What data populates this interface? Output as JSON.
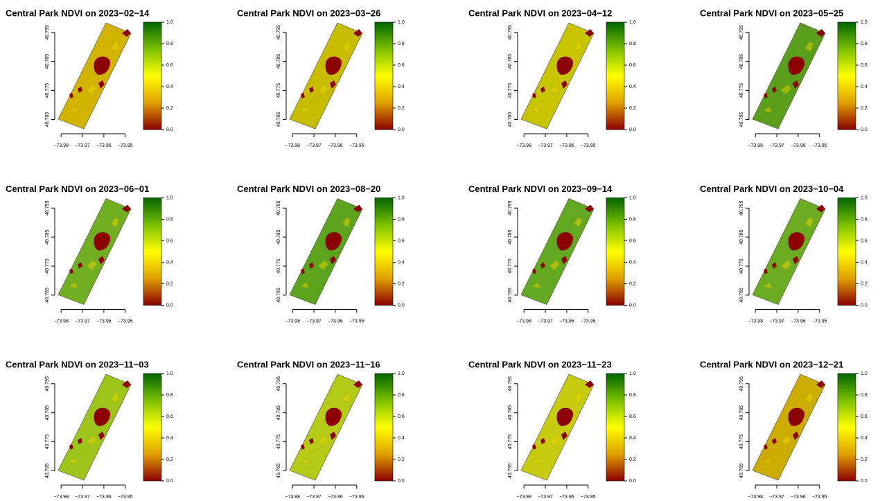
{
  "chart_data": [
    {
      "type": "raster",
      "title": "Central Park NDVI on 2023−02−14",
      "color": "#d2b400",
      "colormap": [
        "#8b0000",
        "#e0a000",
        "#ffff00",
        "#7cc000",
        "#006400"
      ],
      "xlim": [
        -73.982,
        -73.947
      ],
      "ylim": [
        40.762,
        40.799
      ],
      "xticks": [
        {
          "value": -73.98,
          "label": "−73.98"
        },
        {
          "value": -73.97,
          "label": "−73.97"
        },
        {
          "value": -73.96,
          "label": "−73.96"
        },
        {
          "value": -73.95,
          "label": "−73.95"
        }
      ],
      "yticks": [
        40.765,
        40.775,
        40.785,
        40.795
      ],
      "clim": [
        0,
        1
      ],
      "cticks": [
        {
          "value": 0,
          "label": "0.0"
        },
        0.2,
        0.4,
        0.6,
        0.8,
        {
          "value": 1,
          "label": "1.0"
        }
      ]
    },
    {
      "type": "raster",
      "title": "Central Park NDVI on 2023−03−26",
      "color": "#c8bc00",
      "colormap": [
        "#8b0000",
        "#e0a000",
        "#ffff00",
        "#7cc000",
        "#006400"
      ],
      "xlim": [
        -73.982,
        -73.947
      ],
      "ylim": [
        40.762,
        40.799
      ],
      "xticks": [
        {
          "value": -73.98,
          "label": "−73.98"
        },
        {
          "value": -73.97,
          "label": "−73.97"
        },
        {
          "value": -73.96,
          "label": "−73.96"
        },
        {
          "value": -73.95,
          "label": "−73.95"
        }
      ],
      "yticks": [
        40.765,
        40.775,
        40.785,
        40.795
      ],
      "clim": [
        0,
        1
      ],
      "cticks": [
        {
          "value": 0,
          "label": "0.0"
        },
        0.2,
        0.4,
        0.6,
        0.8,
        {
          "value": 1,
          "label": "1.0"
        }
      ]
    },
    {
      "type": "raster",
      "title": "Central Park NDVI on 2023−04−12",
      "color": "#c8c400",
      "colormap": [
        "#8b0000",
        "#e0a000",
        "#ffff00",
        "#7cc000",
        "#006400"
      ],
      "xlim": [
        -73.982,
        -73.947
      ],
      "ylim": [
        40.762,
        40.799
      ],
      "xticks": [
        {
          "value": -73.98,
          "label": "−73.98"
        },
        {
          "value": -73.97,
          "label": "−73.97"
        },
        {
          "value": -73.96,
          "label": "−73.96"
        },
        {
          "value": -73.95,
          "label": "−73.95"
        }
      ],
      "yticks": [
        40.765,
        40.775,
        40.785,
        40.795
      ],
      "clim": [
        0,
        1
      ],
      "cticks": [
        {
          "value": 0,
          "label": "0.0"
        },
        0.2,
        0.4,
        0.6,
        0.8,
        {
          "value": 1,
          "label": "1.0"
        }
      ]
    },
    {
      "type": "raster",
      "title": "Central Park NDVI on 2023−05−25",
      "color": "#5a9e1c",
      "colormap": [
        "#8b0000",
        "#e0a000",
        "#ffff00",
        "#7cc000",
        "#006400"
      ],
      "xlim": [
        -73.982,
        -73.947
      ],
      "ylim": [
        40.762,
        40.799
      ],
      "xticks": [
        {
          "value": -73.98,
          "label": "−73.98"
        },
        {
          "value": -73.97,
          "label": "−73.97"
        },
        {
          "value": -73.96,
          "label": "−73.96"
        },
        {
          "value": -73.95,
          "label": "−73.95"
        }
      ],
      "yticks": [
        40.765,
        40.775,
        40.785,
        40.795
      ],
      "clim": [
        0,
        1
      ],
      "cticks": [
        {
          "value": 0,
          "label": "0.0"
        },
        0.2,
        0.4,
        0.6,
        0.8,
        {
          "value": 1,
          "label": "1.0"
        }
      ]
    },
    {
      "type": "raster",
      "title": "Central Park NDVI on 2023−06−01",
      "color": "#72ae22",
      "colormap": [
        "#8b0000",
        "#e0a000",
        "#ffff00",
        "#7cc000",
        "#006400"
      ],
      "xlim": [
        -73.982,
        -73.947
      ],
      "ylim": [
        40.762,
        40.799
      ],
      "xticks": [
        {
          "value": -73.98,
          "label": "−73.98"
        },
        {
          "value": -73.97,
          "label": "−73.97"
        },
        {
          "value": -73.96,
          "label": "−73.96"
        },
        {
          "value": -73.95,
          "label": "−73.95"
        }
      ],
      "yticks": [
        40.765,
        40.775,
        40.785,
        40.795
      ],
      "clim": [
        0,
        1
      ],
      "cticks": [
        {
          "value": 0,
          "label": "0.0"
        },
        0.2,
        0.4,
        0.6,
        0.8,
        {
          "value": 1,
          "label": "1.0"
        }
      ]
    },
    {
      "type": "raster",
      "title": "Central Park NDVI on 2023−08−20",
      "color": "#5ca41e",
      "colormap": [
        "#8b0000",
        "#e0a000",
        "#ffff00",
        "#7cc000",
        "#006400"
      ],
      "xlim": [
        -73.982,
        -73.947
      ],
      "ylim": [
        40.762,
        40.799
      ],
      "xticks": [
        {
          "value": -73.98,
          "label": "−73.98"
        },
        {
          "value": -73.97,
          "label": "−73.97"
        },
        {
          "value": -73.96,
          "label": "−73.96"
        },
        {
          "value": -73.95,
          "label": "−73.95"
        }
      ],
      "yticks": [
        40.765,
        40.775,
        40.785,
        40.795
      ],
      "clim": [
        0,
        1
      ],
      "cticks": [
        {
          "value": 0,
          "label": "0.0"
        },
        0.2,
        0.4,
        0.6,
        0.8,
        {
          "value": 1,
          "label": "1.0"
        }
      ]
    },
    {
      "type": "raster",
      "title": "Central Park NDVI on 2023−09−14",
      "color": "#62a820",
      "colormap": [
        "#8b0000",
        "#e0a000",
        "#ffff00",
        "#7cc000",
        "#006400"
      ],
      "xlim": [
        -73.982,
        -73.947
      ],
      "ylim": [
        40.762,
        40.799
      ],
      "xticks": [
        {
          "value": -73.98,
          "label": "−73.98"
        },
        {
          "value": -73.97,
          "label": "−73.97"
        },
        {
          "value": -73.96,
          "label": "−73.96"
        },
        {
          "value": -73.95,
          "label": "−73.95"
        }
      ],
      "yticks": [
        40.765,
        40.775,
        40.785,
        40.795
      ],
      "clim": [
        0,
        1
      ],
      "cticks": [
        {
          "value": 0,
          "label": "0.0"
        },
        0.2,
        0.4,
        0.6,
        0.8,
        {
          "value": 1,
          "label": "1.0"
        }
      ]
    },
    {
      "type": "raster",
      "title": "Central Park NDVI on 2023−10−04",
      "color": "#6cac22",
      "colormap": [
        "#8b0000",
        "#e0a000",
        "#ffff00",
        "#7cc000",
        "#006400"
      ],
      "xlim": [
        -73.982,
        -73.947
      ],
      "ylim": [
        40.762,
        40.799
      ],
      "xticks": [
        {
          "value": -73.98,
          "label": "−73.98"
        },
        {
          "value": -73.97,
          "label": "−73.97"
        },
        {
          "value": -73.96,
          "label": "−73.96"
        },
        {
          "value": -73.95,
          "label": "−73.95"
        }
      ],
      "yticks": [
        40.765,
        40.775,
        40.785,
        40.795
      ],
      "clim": [
        0,
        1
      ],
      "cticks": [
        {
          "value": 0,
          "label": "0.0"
        },
        0.2,
        0.4,
        0.6,
        0.8,
        {
          "value": 1,
          "label": "1.0"
        }
      ]
    },
    {
      "type": "raster",
      "title": "Central Park NDVI on 2023−11−03",
      "color": "#9cc41a",
      "colormap": [
        "#8b0000",
        "#e0a000",
        "#ffff00",
        "#7cc000",
        "#006400"
      ],
      "xlim": [
        -73.982,
        -73.947
      ],
      "ylim": [
        40.762,
        40.799
      ],
      "xticks": [
        {
          "value": -73.98,
          "label": "−73.98"
        },
        {
          "value": -73.97,
          "label": "−73.97"
        },
        {
          "value": -73.96,
          "label": "−73.96"
        },
        {
          "value": -73.95,
          "label": "−73.95"
        }
      ],
      "yticks": [
        40.765,
        40.775,
        40.785,
        40.795
      ],
      "clim": [
        0,
        1
      ],
      "cticks": [
        {
          "value": 0,
          "label": "0.0"
        },
        0.2,
        0.4,
        0.6,
        0.8,
        {
          "value": 1,
          "label": "1.0"
        }
      ]
    },
    {
      "type": "raster",
      "title": "Central Park NDVI on 2023−11−16",
      "color": "#b6ca18",
      "colormap": [
        "#8b0000",
        "#e0a000",
        "#ffff00",
        "#7cc000",
        "#006400"
      ],
      "xlim": [
        -73.982,
        -73.947
      ],
      "ylim": [
        40.762,
        40.799
      ],
      "xticks": [
        {
          "value": -73.98,
          "label": "−73.98"
        },
        {
          "value": -73.97,
          "label": "−73.97"
        },
        {
          "value": -73.96,
          "label": "−73.96"
        },
        {
          "value": -73.95,
          "label": "−73.95"
        }
      ],
      "yticks": [
        40.765,
        40.775,
        40.785,
        40.795
      ],
      "clim": [
        0,
        1
      ],
      "cticks": [
        {
          "value": 0,
          "label": "0.0"
        },
        0.2,
        0.4,
        0.6,
        0.8,
        {
          "value": 1,
          "label": "1.0"
        }
      ]
    },
    {
      "type": "raster",
      "title": "Central Park NDVI on 2023−11−23",
      "color": "#c8cc10",
      "colormap": [
        "#8b0000",
        "#e0a000",
        "#ffff00",
        "#7cc000",
        "#006400"
      ],
      "xlim": [
        -73.982,
        -73.947
      ],
      "ylim": [
        40.762,
        40.799
      ],
      "xticks": [
        {
          "value": -73.98,
          "label": "−73.98"
        },
        {
          "value": -73.97,
          "label": "−73.97"
        },
        {
          "value": -73.96,
          "label": "−73.96"
        },
        {
          "value": -73.95,
          "label": "−73.95"
        }
      ],
      "yticks": [
        40.765,
        40.775,
        40.785,
        40.795
      ],
      "clim": [
        0,
        1
      ],
      "cticks": [
        {
          "value": 0,
          "label": "0.0"
        },
        0.2,
        0.4,
        0.6,
        0.8,
        {
          "value": 1,
          "label": "1.0"
        }
      ]
    },
    {
      "type": "raster",
      "title": "Central Park NDVI on 2023−12−21",
      "color": "#ccac00",
      "colormap": [
        "#8b0000",
        "#e0a000",
        "#ffff00",
        "#7cc000",
        "#006400"
      ],
      "xlim": [
        -73.982,
        -73.947
      ],
      "ylim": [
        40.762,
        40.799
      ],
      "xticks": [
        {
          "value": -73.98,
          "label": "−73.98"
        },
        {
          "value": -73.97,
          "label": "−73.97"
        },
        {
          "value": -73.96,
          "label": "−73.96"
        },
        {
          "value": -73.95,
          "label": "−73.95"
        }
      ],
      "yticks": [
        40.765,
        40.775,
        40.785,
        40.795
      ],
      "clim": [
        0,
        1
      ],
      "cticks": [
        {
          "value": 0,
          "label": "0.0"
        },
        0.2,
        0.4,
        0.6,
        0.8,
        {
          "value": 1,
          "label": "1.0"
        }
      ]
    }
  ]
}
